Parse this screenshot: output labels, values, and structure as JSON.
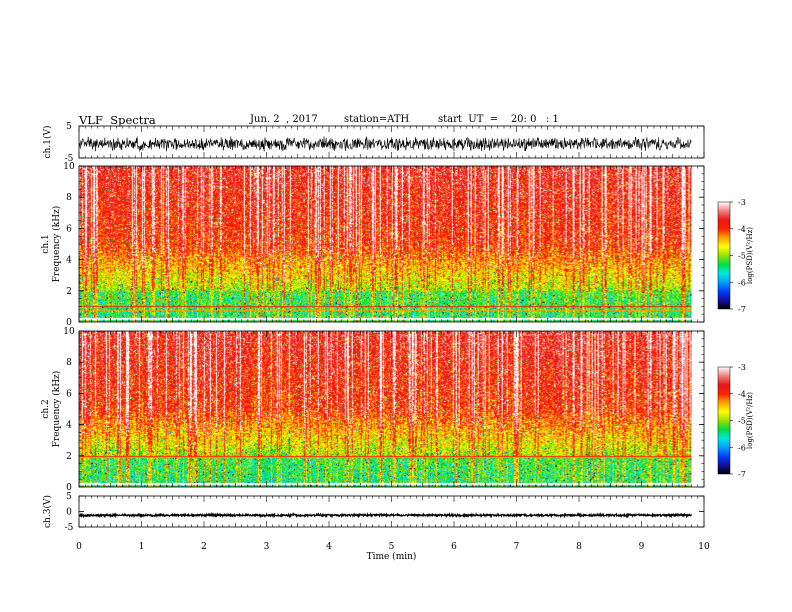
{
  "header": {
    "title": "VLF  Spectra",
    "date": "Jun. 2  , 2017",
    "station": "station=ATH",
    "start": "start  UT  =    20: 0   : 1"
  },
  "chart_data": [
    {
      "type": "line",
      "panel": "ch1-waveform",
      "ylabel": "ch.1(V)",
      "ylim": [
        -5,
        5
      ],
      "yticks": [
        "5",
        "-5"
      ],
      "trace": {
        "color": "#000000",
        "center": -0.6,
        "amplitude": 2.2
      }
    },
    {
      "type": "heatmap",
      "panel": "ch1-spectrogram",
      "ylabel": [
        "ch.1",
        "Frequency  (kHz)"
      ],
      "ylim": [
        0,
        10
      ],
      "yticks": [
        "0",
        "2",
        "4",
        "6",
        "8",
        "10"
      ],
      "colorbar": {
        "label": "log(PSD)(V²/Hz)",
        "range": [
          -7,
          -3
        ],
        "ticks": [
          "-3",
          "-4",
          "-5",
          "-6",
          "-7"
        ]
      },
      "noise_lines_khz": [
        0.8,
        1.0
      ]
    },
    {
      "type": "heatmap",
      "panel": "ch2-spectrogram",
      "ylabel": [
        "ch.2",
        "Frequency  (kHz)"
      ],
      "ylim": [
        0,
        10
      ],
      "yticks": [
        "0",
        "2",
        "4",
        "6",
        "8",
        "10"
      ],
      "colorbar": {
        "label": "log(PSD)(V²/Hz)",
        "range": [
          -7,
          -3
        ],
        "ticks": [
          "-3",
          "-4",
          "-5",
          "-6",
          "-7"
        ]
      },
      "noise_lines_khz": [
        1.9,
        2.0
      ]
    },
    {
      "type": "line",
      "panel": "ch3-waveform",
      "ylabel": "ch.3(V)",
      "ylim": [
        -5,
        5
      ],
      "yticks": [
        "5",
        "0",
        "-5"
      ],
      "trace": {
        "color": "#000000",
        "center": -1.2,
        "amplitude": 0.35
      }
    }
  ],
  "x_axis": {
    "label": "Time  (min)",
    "range": [
      0,
      10
    ],
    "data_end": 9.8,
    "ticks": [
      "0",
      "1",
      "2",
      "3",
      "4",
      "5",
      "6",
      "7",
      "8",
      "9",
      "10"
    ]
  },
  "colors": {
    "colormap": [
      "#000000",
      "#1010a0",
      "#0040ff",
      "#00a0ff",
      "#00e8e0",
      "#00e040",
      "#9ae000",
      "#ffff00",
      "#ffa000",
      "#ff2000",
      "#e81818",
      "#f08080",
      "#ffffff"
    ]
  }
}
